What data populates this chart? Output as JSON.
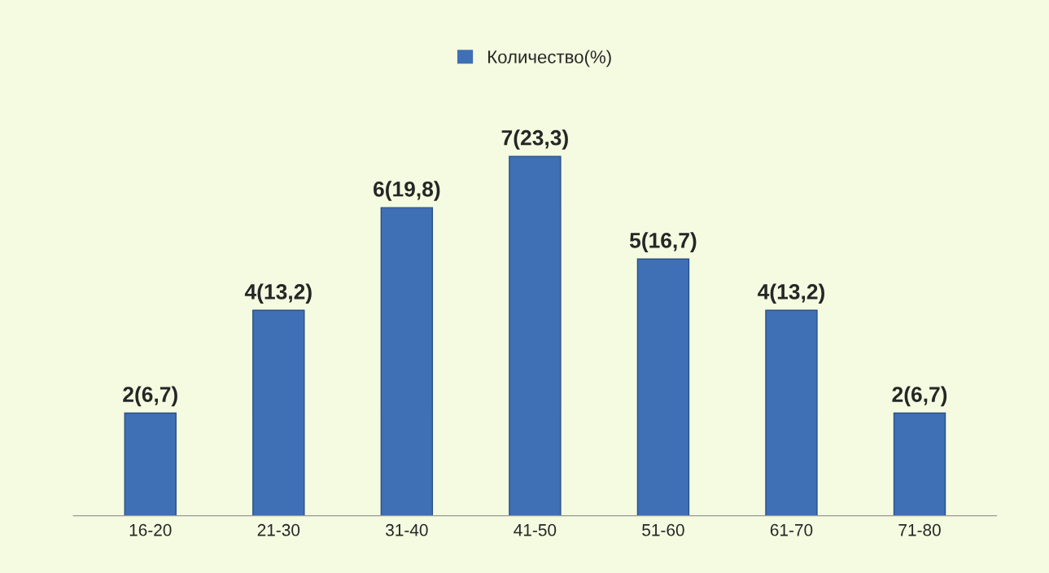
{
  "chart_data": {
    "type": "bar",
    "categories": [
      "16-20",
      "21-30",
      "31-40",
      "41-50",
      "51-60",
      "61-70",
      "71-80"
    ],
    "series": [
      {
        "name": "Количество(%)",
        "color": "#3f6fb5",
        "values": [
          2,
          4,
          6,
          7,
          5,
          4,
          2
        ],
        "value_labels": [
          "2(6,7)",
          "4(13,2)",
          "6(19,8)",
          "7(23,3)",
          "5(16,7)",
          "4(13,2)",
          "2(6,7)"
        ]
      }
    ],
    "legend": "top",
    "tick_labels": "x",
    "grid": false
  }
}
